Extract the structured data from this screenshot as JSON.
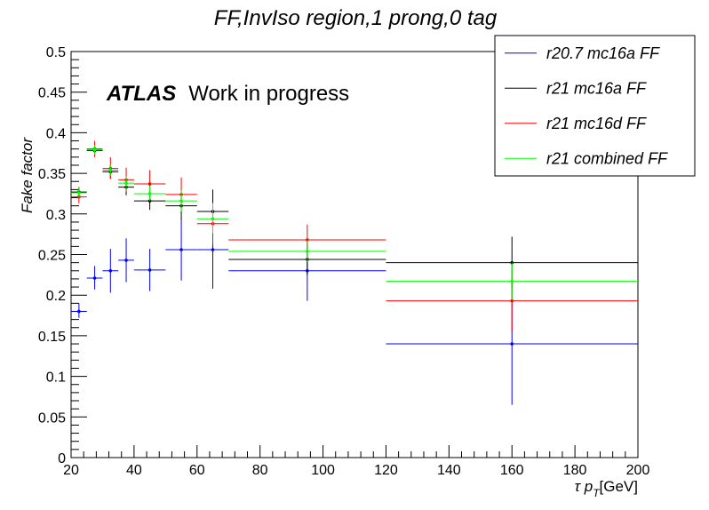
{
  "chart_data": {
    "type": "scatter",
    "title": "FF,InvIso region,1 prong,0 tag",
    "xlabel_prefix": "τ p",
    "xlabel_sub": "T",
    "xlabel_suffix": "[GeV]",
    "ylabel": "Fake factor",
    "xlim": [
      20,
      200
    ],
    "ylim": [
      0,
      0.5
    ],
    "x_ticks": [
      20,
      40,
      60,
      80,
      100,
      120,
      140,
      160,
      180,
      200
    ],
    "y_ticks": [
      0,
      0.05,
      0.1,
      0.15,
      0.2,
      0.25,
      0.3,
      0.35,
      0.4,
      0.45,
      0.5
    ],
    "annotation_bold": "ATLAS",
    "annotation_text": "Work in progress",
    "legend_position": "top-right",
    "series": [
      {
        "name": "r20.7 mc16a FF",
        "color": "#0000ff",
        "points": [
          {
            "x": 22.5,
            "xlo": 20,
            "xhi": 25,
            "y": 0.18,
            "ylo": 0.172,
            "yhi": 0.19
          },
          {
            "x": 27.5,
            "xlo": 25,
            "xhi": 30,
            "y": 0.221,
            "ylo": 0.207,
            "yhi": 0.236
          },
          {
            "x": 32.5,
            "xlo": 30,
            "xhi": 35,
            "y": 0.23,
            "ylo": 0.203,
            "yhi": 0.257
          },
          {
            "x": 37.5,
            "xlo": 35,
            "xhi": 40,
            "y": 0.243,
            "ylo": 0.216,
            "yhi": 0.27
          },
          {
            "x": 45,
            "xlo": 40,
            "xhi": 50,
            "y": 0.231,
            "ylo": 0.205,
            "yhi": 0.257
          },
          {
            "x": 55,
            "xlo": 50,
            "xhi": 60,
            "y": 0.256,
            "ylo": 0.218,
            "yhi": 0.294
          },
          {
            "x": 65,
            "xlo": 60,
            "xhi": 70,
            "y": 0.256,
            "ylo": 0.208,
            "yhi": 0.303
          },
          {
            "x": 95,
            "xlo": 70,
            "xhi": 120,
            "y": 0.23,
            "ylo": 0.193,
            "yhi": 0.267
          },
          {
            "x": 160,
            "xlo": 120,
            "xhi": 200,
            "y": 0.14,
            "ylo": 0.065,
            "yhi": 0.215
          }
        ]
      },
      {
        "name": "r21 mc16a FF",
        "color": "#000000",
        "points": [
          {
            "x": 22.5,
            "xlo": 20,
            "xhi": 25,
            "y": 0.327,
            "ylo": 0.321,
            "yhi": 0.333
          },
          {
            "x": 27.5,
            "xlo": 25,
            "xhi": 30,
            "y": 0.378,
            "ylo": 0.372,
            "yhi": 0.385
          },
          {
            "x": 32.5,
            "xlo": 30,
            "xhi": 35,
            "y": 0.352,
            "ylo": 0.344,
            "yhi": 0.36
          },
          {
            "x": 37.5,
            "xlo": 35,
            "xhi": 40,
            "y": 0.333,
            "ylo": 0.323,
            "yhi": 0.343
          },
          {
            "x": 45,
            "xlo": 40,
            "xhi": 50,
            "y": 0.316,
            "ylo": 0.305,
            "yhi": 0.327
          },
          {
            "x": 55,
            "xlo": 50,
            "xhi": 60,
            "y": 0.31,
            "ylo": 0.293,
            "yhi": 0.327
          },
          {
            "x": 65,
            "xlo": 60,
            "xhi": 70,
            "y": 0.303,
            "ylo": 0.277,
            "yhi": 0.33
          },
          {
            "x": 95,
            "xlo": 70,
            "xhi": 120,
            "y": 0.244,
            "ylo": 0.225,
            "yhi": 0.263
          },
          {
            "x": 160,
            "xlo": 120,
            "xhi": 200,
            "y": 0.24,
            "ylo": 0.208,
            "yhi": 0.272
          }
        ]
      },
      {
        "name": "r21 mc16d FF",
        "color": "#ff0000",
        "points": [
          {
            "x": 22.5,
            "xlo": 20,
            "xhi": 25,
            "y": 0.321,
            "ylo": 0.313,
            "yhi": 0.329
          },
          {
            "x": 27.5,
            "xlo": 25,
            "xhi": 30,
            "y": 0.38,
            "ylo": 0.37,
            "yhi": 0.39
          },
          {
            "x": 32.5,
            "xlo": 30,
            "xhi": 35,
            "y": 0.356,
            "ylo": 0.343,
            "yhi": 0.37
          },
          {
            "x": 37.5,
            "xlo": 35,
            "xhi": 40,
            "y": 0.342,
            "ylo": 0.327,
            "yhi": 0.357
          },
          {
            "x": 45,
            "xlo": 40,
            "xhi": 50,
            "y": 0.337,
            "ylo": 0.32,
            "yhi": 0.354
          },
          {
            "x": 55,
            "xlo": 50,
            "xhi": 60,
            "y": 0.324,
            "ylo": 0.303,
            "yhi": 0.345
          },
          {
            "x": 65,
            "xlo": 60,
            "xhi": 70,
            "y": 0.288,
            "ylo": 0.262,
            "yhi": 0.314
          },
          {
            "x": 95,
            "xlo": 70,
            "xhi": 120,
            "y": 0.268,
            "ylo": 0.25,
            "yhi": 0.287
          },
          {
            "x": 160,
            "xlo": 120,
            "xhi": 200,
            "y": 0.193,
            "ylo": 0.155,
            "yhi": 0.23
          }
        ]
      },
      {
        "name": "r21 combined FF",
        "color": "#00ff00",
        "points": [
          {
            "x": 22.5,
            "xlo": 20,
            "xhi": 25,
            "y": 0.326,
            "ylo": 0.32,
            "yhi": 0.332
          },
          {
            "x": 27.5,
            "xlo": 25,
            "xhi": 30,
            "y": 0.379,
            "ylo": 0.373,
            "yhi": 0.385
          },
          {
            "x": 32.5,
            "xlo": 30,
            "xhi": 35,
            "y": 0.354,
            "ylo": 0.347,
            "yhi": 0.361
          },
          {
            "x": 37.5,
            "xlo": 35,
            "xhi": 40,
            "y": 0.338,
            "ylo": 0.33,
            "yhi": 0.346
          },
          {
            "x": 45,
            "xlo": 40,
            "xhi": 50,
            "y": 0.325,
            "ylo": 0.316,
            "yhi": 0.334
          },
          {
            "x": 55,
            "xlo": 50,
            "xhi": 60,
            "y": 0.316,
            "ylo": 0.303,
            "yhi": 0.329
          },
          {
            "x": 65,
            "xlo": 60,
            "xhi": 70,
            "y": 0.294,
            "ylo": 0.276,
            "yhi": 0.313
          },
          {
            "x": 95,
            "xlo": 70,
            "xhi": 120,
            "y": 0.254,
            "ylo": 0.241,
            "yhi": 0.268
          },
          {
            "x": 160,
            "xlo": 120,
            "xhi": 200,
            "y": 0.217,
            "ylo": 0.194,
            "yhi": 0.24
          }
        ]
      }
    ]
  }
}
